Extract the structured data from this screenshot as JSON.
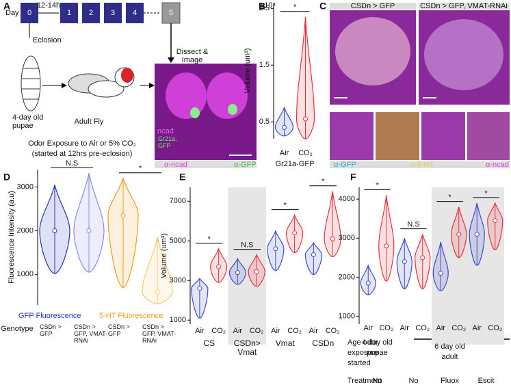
{
  "panel_labels": [
    "A",
    "B",
    "C",
    "D",
    "E",
    "F"
  ],
  "panel_a": {
    "day_label": "Day",
    "days": [
      "0",
      "1",
      "2",
      "3",
      "4",
      "5"
    ],
    "interval": "12-14h",
    "eclosion": "Eclosion",
    "dissect": "Dissect & Image",
    "pupae": "4-day old pupae",
    "adult": "Adult Fly",
    "exposure": "Odor Exposure to Air or 5% CO₂",
    "started": "(started at 12hrs pre-eclosion)",
    "image_labels": [
      "ncad",
      "Gr21a, GFP"
    ],
    "stain_labels": [
      "α-ncad",
      "α-GFP"
    ]
  },
  "panel_c": {
    "image_titles": [
      "CSDn > GFP",
      "CSDn > GFP, VMAT-RNAi"
    ],
    "stain_labels": [
      "α-GFP",
      "α-5-HT",
      "α-ncad"
    ]
  },
  "chart_data": [
    {
      "type": "violin",
      "ylabel": "Volume (um³)",
      "y_multiplier": "x10⁴",
      "xlabel": "Gr21a-GFP",
      "categories": [
        "Air",
        "CO₂"
      ],
      "colors": [
        "#3a4bd0",
        "#e8323c"
      ],
      "min": [
        0.25,
        0.2
      ],
      "median": [
        0.4,
        0.55
      ],
      "max": [
        0.75,
        2.35
      ],
      "significance": [
        "*"
      ],
      "ylim": [
        0.2,
        2.6
      ],
      "yticks": [
        0.5,
        1.5,
        2.5
      ]
    },
    {
      "type": "violin",
      "ylabel": "Fluorescence Intensity (a.u)",
      "xlabel": "Genotype",
      "categories": [
        "CSDn > GFP",
        "CSDn > GFP, VMAT-RNAi",
        "CSDn > GFP",
        "CSDn > GFP, VMAT-RNAi"
      ],
      "colors": [
        "#2233bb",
        "#8888ee",
        "#f09a1a",
        "#f5c870"
      ],
      "min": [
        1020,
        1050,
        700,
        330
      ],
      "median": [
        2000,
        2000,
        2350,
        600
      ],
      "max": [
        3050,
        3320,
        3200,
        1850
      ],
      "significance": [
        "N.S",
        "*"
      ],
      "legend": [
        "GFP Fluorescence",
        "5-HT Fluorescence"
      ],
      "legend_colors": [
        "#2233bb",
        "#f09a1a"
      ],
      "ylim": [
        300,
        3400
      ],
      "yticks": [
        1000,
        2000,
        3000
      ]
    },
    {
      "type": "violin",
      "ylabel": "Volume (um³)",
      "categories": [
        "Air",
        "CO₂",
        "Air",
        "CO₂",
        "Air",
        "CO₂",
        "Air",
        "CO₂"
      ],
      "colors": [
        "#3a4bd0",
        "#e8323c",
        "#3a4bd0",
        "#e8323c",
        "#3a4bd0",
        "#e8323c",
        "#3a4bd0",
        "#e8323c"
      ],
      "min": [
        1100,
        2900,
        2800,
        2700,
        3500,
        4400,
        3300,
        4200
      ],
      "median": [
        2600,
        3700,
        3400,
        3450,
        4600,
        5400,
        4300,
        5100
      ],
      "max": [
        3100,
        4600,
        4100,
        4300,
        5500,
        6300,
        4900,
        7500
      ],
      "significance": [
        "*",
        "N.S",
        "*",
        "*"
      ],
      "group_labels": [
        "CS",
        "CSDn> Vmat",
        "Vmat",
        "CSDn"
      ],
      "ylim": [
        800,
        7700
      ],
      "yticks": [
        1000,
        3000,
        5000,
        7000
      ]
    },
    {
      "type": "violin",
      "categories": [
        "Air",
        "CO₂",
        "Air",
        "CO₂",
        "Air",
        "CO₂",
        "Air",
        "CO₂"
      ],
      "colors": [
        "#3a4bd0",
        "#e8323c",
        "#3a4bd0",
        "#e8323c",
        "#3a4bd0",
        "#e8323c",
        "#3a4bd0",
        "#e8323c"
      ],
      "min": [
        1550,
        1900,
        1700,
        1700,
        1650,
        2500,
        2300,
        2700
      ],
      "median": [
        1850,
        2800,
        2400,
        2500,
        2100,
        3100,
        3100,
        3450
      ],
      "max": [
        2300,
        4100,
        3000,
        3100,
        2900,
        3800,
        3900,
        3900
      ],
      "significance": [
        "*",
        "N.S",
        "*",
        "*"
      ],
      "rows": {
        "age_title": "Age odor exposure started",
        "ages": [
          "4 day old pupae",
          "6 day old adult"
        ],
        "treatment_title": "Treatment",
        "treatments": [
          "No",
          "No",
          "Fluox",
          "Escit"
        ]
      },
      "ylim": [
        800,
        4300
      ],
      "yticks": [
        1000,
        2000,
        3000,
        4000
      ]
    }
  ]
}
